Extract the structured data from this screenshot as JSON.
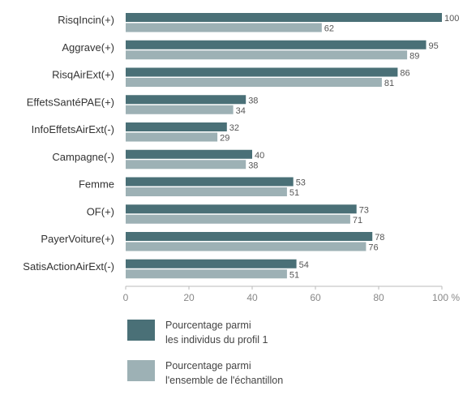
{
  "chart_data": {
    "type": "bar",
    "orientation": "horizontal",
    "categories": [
      "RisqIncin(+)",
      "Aggrave(+)",
      "RisqAirExt(+)",
      "EffetsSantéPAE(+)",
      "InfoEffetsAirExt(-)",
      "Campagne(-)",
      "Femme",
      "OF(+)",
      "PayerVoiture(+)",
      "SatisActionAirExt(-)"
    ],
    "series": [
      {
        "name_lines": [
          "Pourcentage parmi",
          "les individus du profil 1"
        ],
        "color": "#4a7077",
        "values": [
          100,
          95,
          86,
          38,
          32,
          40,
          53,
          73,
          78,
          54
        ]
      },
      {
        "name_lines": [
          "Pourcentage parmi",
          "l'ensemble de l'échantillon"
        ],
        "color": "#9db1b5",
        "values": [
          62,
          89,
          81,
          34,
          29,
          38,
          51,
          71,
          76,
          51
        ]
      }
    ],
    "xlim": [
      0,
      100
    ],
    "xticks": [
      "0",
      "20",
      "40",
      "60",
      "80",
      "100 %"
    ],
    "grid": false,
    "legend_placement": "bottom-left"
  }
}
